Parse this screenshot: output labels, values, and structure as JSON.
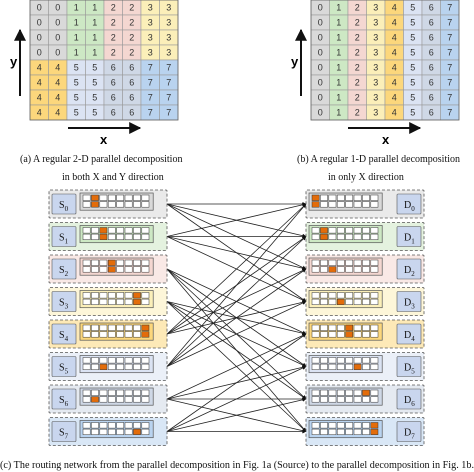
{
  "grid_a": {
    "rows": [
      [
        0,
        0,
        1,
        1,
        2,
        2,
        3,
        3
      ],
      [
        0,
        0,
        1,
        1,
        2,
        2,
        3,
        3
      ],
      [
        0,
        0,
        1,
        1,
        2,
        2,
        3,
        3
      ],
      [
        0,
        0,
        1,
        1,
        2,
        2,
        3,
        3
      ],
      [
        4,
        4,
        5,
        5,
        6,
        6,
        7,
        7
      ],
      [
        4,
        4,
        5,
        5,
        6,
        6,
        7,
        7
      ],
      [
        4,
        4,
        5,
        5,
        6,
        6,
        7,
        7
      ],
      [
        4,
        4,
        5,
        5,
        6,
        6,
        7,
        7
      ]
    ],
    "y_label": "y",
    "x_label": "x"
  },
  "grid_b": {
    "rows": [
      [
        0,
        1,
        2,
        3,
        4,
        5,
        6,
        7
      ],
      [
        0,
        1,
        2,
        3,
        4,
        5,
        6,
        7
      ],
      [
        0,
        1,
        2,
        3,
        4,
        5,
        6,
        7
      ],
      [
        0,
        1,
        2,
        3,
        4,
        5,
        6,
        7
      ],
      [
        0,
        1,
        2,
        3,
        4,
        5,
        6,
        7
      ],
      [
        0,
        1,
        2,
        3,
        4,
        5,
        6,
        7
      ],
      [
        0,
        1,
        2,
        3,
        4,
        5,
        6,
        7
      ],
      [
        0,
        1,
        2,
        3,
        4,
        5,
        6,
        7
      ]
    ],
    "y_label": "y",
    "x_label": "x"
  },
  "colors": {
    "0": "#d9d9d9",
    "1": "#cde8c4",
    "2": "#f4d7d1",
    "3": "#fbefb9",
    "4": "#fcd77c",
    "5": "#dbe3f3",
    "6": "#cfd8e6",
    "7": "#b9d3ef",
    "highlight": "#e36c0a",
    "line": "#222222"
  },
  "captions": {
    "a_line1": "(a) A regular 2-D parallel decomposition",
    "a_line2": "in both X and Y direction",
    "b_line1": "(b) A regular 1-D parallel decomposition",
    "b_line2": "in only X direction",
    "c": "(c) The routing network from the parallel decomposition in Fig. 1a (Source) to the parallel decomposition in Fig. 1b."
  },
  "network": {
    "sources": [
      {
        "label": "S",
        "sub": "0",
        "highlights": [
          [
            0,
            1
          ],
          [
            1,
            1
          ]
        ]
      },
      {
        "label": "S",
        "sub": "1",
        "highlights": [
          [
            0,
            2
          ],
          [
            1,
            2
          ]
        ]
      },
      {
        "label": "S",
        "sub": "2",
        "highlights": [
          [
            0,
            3
          ],
          [
            1,
            3
          ]
        ]
      },
      {
        "label": "S",
        "sub": "3",
        "highlights": [
          [
            0,
            6
          ],
          [
            1,
            6
          ]
        ]
      },
      {
        "label": "S",
        "sub": "4",
        "highlights": [
          [
            0,
            7
          ],
          [
            1,
            7
          ]
        ]
      },
      {
        "label": "S",
        "sub": "5",
        "highlights": [
          [
            1,
            2
          ]
        ]
      },
      {
        "label": "S",
        "sub": "6",
        "highlights": [
          [
            1,
            1
          ]
        ]
      },
      {
        "label": "S",
        "sub": "7",
        "highlights": [
          [
            1,
            6
          ]
        ]
      }
    ],
    "destinations": [
      {
        "label": "D",
        "sub": "0",
        "highlights": [
          [
            0,
            0
          ],
          [
            1,
            0
          ]
        ]
      },
      {
        "label": "D",
        "sub": "1",
        "highlights": [
          [
            0,
            1
          ],
          [
            1,
            1
          ]
        ]
      },
      {
        "label": "D",
        "sub": "2",
        "highlights": [
          [
            1,
            2
          ]
        ]
      },
      {
        "label": "D",
        "sub": "3",
        "highlights": [
          [
            1,
            3
          ]
        ]
      },
      {
        "label": "D",
        "sub": "4",
        "highlights": [
          [
            0,
            4
          ],
          [
            1,
            4
          ]
        ]
      },
      {
        "label": "D",
        "sub": "5",
        "highlights": [
          [
            1,
            5
          ]
        ]
      },
      {
        "label": "D",
        "sub": "6",
        "highlights": [
          [
            0,
            6
          ]
        ]
      },
      {
        "label": "D",
        "sub": "7",
        "highlights": [
          [
            0,
            7
          ],
          [
            1,
            7
          ]
        ]
      }
    ],
    "links": [
      [
        0,
        0
      ],
      [
        0,
        1
      ],
      [
        0,
        2
      ],
      [
        0,
        3
      ],
      [
        1,
        0
      ],
      [
        1,
        1
      ],
      [
        1,
        2
      ],
      [
        1,
        3
      ],
      [
        2,
        4
      ],
      [
        2,
        5
      ],
      [
        2,
        6
      ],
      [
        2,
        7
      ],
      [
        3,
        4
      ],
      [
        3,
        5
      ],
      [
        3,
        6
      ],
      [
        3,
        7
      ],
      [
        4,
        0
      ],
      [
        4,
        1
      ],
      [
        4,
        2
      ],
      [
        4,
        3
      ],
      [
        5,
        0
      ],
      [
        5,
        1
      ],
      [
        5,
        2
      ],
      [
        5,
        3
      ],
      [
        6,
        4
      ],
      [
        6,
        5
      ],
      [
        6,
        6
      ],
      [
        6,
        7
      ],
      [
        7,
        4
      ],
      [
        7,
        5
      ],
      [
        7,
        6
      ],
      [
        7,
        7
      ]
    ]
  }
}
